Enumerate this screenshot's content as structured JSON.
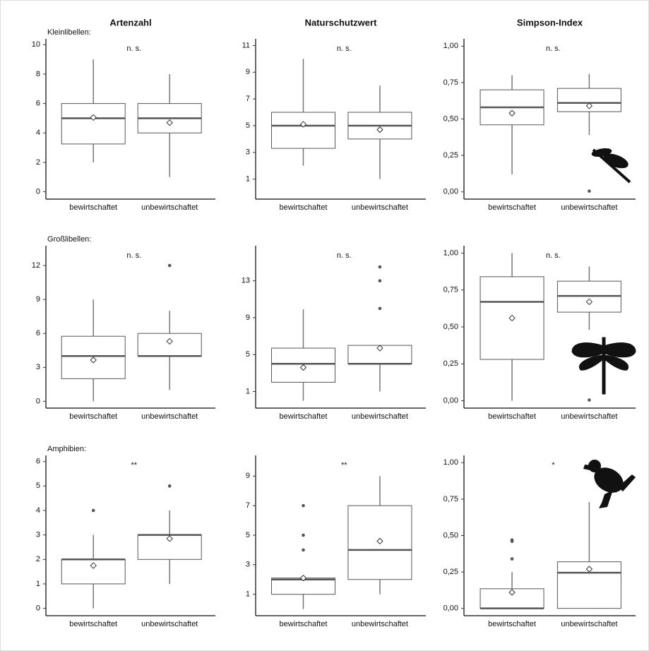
{
  "chart_data": [
    {
      "type": "box",
      "title": "Artenzahl",
      "row_label": "Kleinlibellen:",
      "annotation": "n. s.",
      "color": "#555555",
      "categories": [
        "bewirtschaftet",
        "unbewirtschaftet"
      ],
      "boxes": [
        {
          "min": 2,
          "q1": 3.25,
          "median": 5,
          "q3": 6,
          "max": 9,
          "mean": 5.05,
          "outliers": []
        },
        {
          "min": 1,
          "q1": 4,
          "median": 5,
          "q3": 6,
          "max": 8,
          "mean": 4.7,
          "outliers": []
        }
      ],
      "ylim": [
        -0.5,
        10.4
      ],
      "yticks": [
        0,
        2,
        4,
        6,
        8,
        10
      ]
    },
    {
      "type": "box",
      "title": "Naturschutzwert",
      "annotation": "n. s.",
      "color": "#555555",
      "categories": [
        "bewirtschaftet",
        "unbewirtschaftet"
      ],
      "boxes": [
        {
          "min": 2,
          "q1": 3.3,
          "median": 5,
          "q3": 6,
          "max": 10,
          "mean": 5.1,
          "outliers": []
        },
        {
          "min": 1,
          "q1": 4,
          "median": 5,
          "q3": 6,
          "max": 8,
          "mean": 4.7,
          "outliers": []
        }
      ],
      "ylim": [
        -0.5,
        11.5
      ],
      "yticks": [
        1,
        3,
        5,
        7,
        9,
        11
      ]
    },
    {
      "type": "box",
      "title": "Simpson-Index",
      "annotation": "n. s.",
      "color": "#555555",
      "categories": [
        "bewirtschaftet",
        "unbewirtschaftet"
      ],
      "boxes": [
        {
          "min": 0.12,
          "q1": 0.46,
          "median": 0.58,
          "q3": 0.7,
          "max": 0.8,
          "mean": 0.54,
          "outliers": []
        },
        {
          "min": 0.39,
          "q1": 0.55,
          "median": 0.61,
          "q3": 0.71,
          "max": 0.81,
          "mean": 0.59,
          "outliers": [
            0.005
          ]
        }
      ],
      "ylim": [
        -0.05,
        1.05
      ],
      "yticks": [
        {
          "value": 0,
          "label": "0,00"
        },
        {
          "value": 0.25,
          "label": "0,25"
        },
        {
          "value": 0.5,
          "label": "0,50"
        },
        {
          "value": 0.75,
          "label": "0,75"
        },
        {
          "value": 1,
          "label": "1,00"
        }
      ]
    },
    {
      "type": "box",
      "row_label": "Großlibellen:",
      "annotation": "n. s.",
      "color": "#555555",
      "categories": [
        "bewirtschaftet",
        "unbewirtschaftet"
      ],
      "boxes": [
        {
          "min": 0,
          "q1": 2,
          "median": 4,
          "q3": 5.75,
          "max": 9,
          "mean": 3.65,
          "outliers": []
        },
        {
          "min": 1,
          "q1": 4,
          "median": 4,
          "q3": 6,
          "max": 8,
          "mean": 5.3,
          "outliers": [
            12
          ]
        }
      ],
      "ylim": [
        -0.6,
        13.75
      ],
      "yticks": [
        0,
        3,
        6,
        9,
        12
      ]
    },
    {
      "type": "box",
      "annotation": "n. s.",
      "color": "#555555",
      "categories": [
        "bewirtschaftet",
        "unbewirtschaftet"
      ],
      "boxes": [
        {
          "min": 0,
          "q1": 2,
          "median": 4,
          "q3": 5.7,
          "max": 9.9,
          "mean": 3.6,
          "outliers": []
        },
        {
          "min": 1,
          "q1": 4,
          "median": 4,
          "q3": 6,
          "max": 6,
          "mean": 5.7,
          "outliers": [
            10,
            13,
            14.5
          ]
        }
      ],
      "ylim": [
        -0.8,
        16.8
      ],
      "yticks": [
        1,
        5,
        9,
        13
      ]
    },
    {
      "type": "box",
      "annotation": "n. s.",
      "color": "#555555",
      "categories": [
        "bewirtschaftet",
        "unbewirtschaftet"
      ],
      "boxes": [
        {
          "min": 0,
          "q1": 0.28,
          "median": 0.67,
          "q3": 0.84,
          "max": 1,
          "mean": 0.56,
          "outliers": []
        },
        {
          "min": 0.48,
          "q1": 0.6,
          "median": 0.71,
          "q3": 0.81,
          "max": 0.91,
          "mean": 0.67,
          "outliers": [
            0.005
          ]
        }
      ],
      "ylim": [
        -0.05,
        1.05
      ],
      "yticks": [
        {
          "value": 0,
          "label": "0,00"
        },
        {
          "value": 0.25,
          "label": "0,25"
        },
        {
          "value": 0.5,
          "label": "0,50"
        },
        {
          "value": 0.75,
          "label": "0,75"
        },
        {
          "value": 1,
          "label": "1,00"
        }
      ]
    },
    {
      "type": "box",
      "row_label": "Amphibien:",
      "annotation": "**",
      "color": "#555555",
      "categories": [
        "bewirtschaftet",
        "unbewirtschaftet"
      ],
      "boxes": [
        {
          "min": 0,
          "q1": 1,
          "median": 2,
          "q3": 2,
          "max": 3,
          "mean": 1.75,
          "outliers": [
            4
          ]
        },
        {
          "min": 1,
          "q1": 2,
          "median": 3,
          "q3": 3,
          "max": 4,
          "mean": 2.85,
          "outliers": [
            5
          ]
        }
      ],
      "ylim": [
        -0.3,
        6.25
      ],
      "yticks": [
        0,
        1,
        2,
        3,
        4,
        5,
        6
      ]
    },
    {
      "type": "box",
      "annotation": "**",
      "color": "#555555",
      "categories": [
        "bewirtschaftet",
        "unbewirtschaftet"
      ],
      "boxes": [
        {
          "min": 0,
          "q1": 1,
          "median": 2,
          "q3": 2.1,
          "max": 2.1,
          "mean": 2.1,
          "outliers": [
            4,
            5,
            7
          ]
        },
        {
          "min": 1,
          "q1": 2,
          "median": 4,
          "q3": 7,
          "max": 9,
          "mean": 4.6,
          "outliers": []
        }
      ],
      "ylim": [
        -0.45,
        10.4
      ],
      "yticks": [
        1,
        3,
        5,
        7,
        9
      ]
    },
    {
      "type": "box",
      "annotation": "*",
      "color": "#555555",
      "categories": [
        "bewirtschaftet",
        "unbewirtschaftet"
      ],
      "boxes": [
        {
          "min": 0,
          "q1": 0,
          "median": 0,
          "q3": 0.135,
          "max": 0.25,
          "mean": 0.11,
          "outliers": [
            0.34,
            0.46,
            0.47
          ]
        },
        {
          "min": 0,
          "q1": 0,
          "median": 0.245,
          "q3": 0.32,
          "max": 0.73,
          "mean": 0.27,
          "outliers": []
        }
      ],
      "ylim": [
        -0.05,
        1.05
      ],
      "yticks": [
        {
          "value": 0,
          "label": "0,00"
        },
        {
          "value": 0.25,
          "label": "0,25"
        },
        {
          "value": 0.5,
          "label": "0,50"
        },
        {
          "value": 0.75,
          "label": "0,75"
        },
        {
          "value": 1,
          "label": "1,00"
        }
      ]
    }
  ]
}
